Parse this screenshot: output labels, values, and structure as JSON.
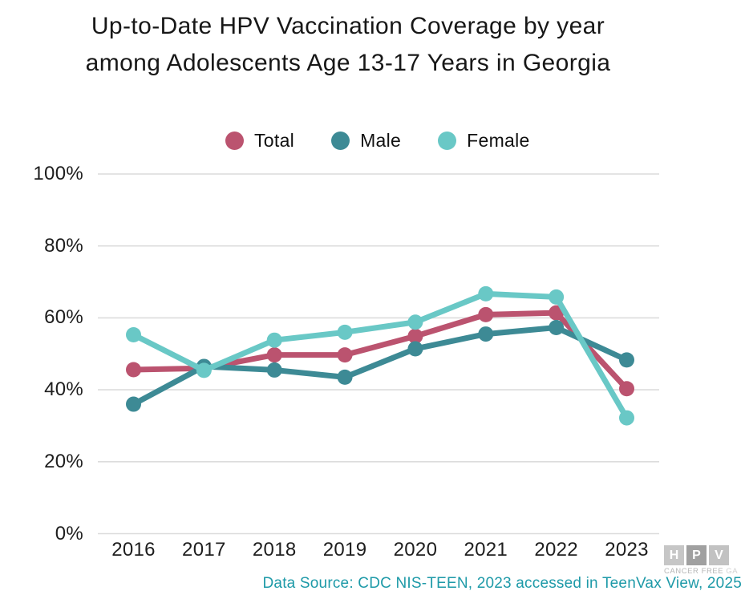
{
  "title": {
    "line1": "Up-to-Date HPV Vaccination Coverage by year",
    "line2": "among Adolescents Age 13-17 Years in Georgia"
  },
  "legend": [
    {
      "label": "Total",
      "color": "#bb536f"
    },
    {
      "label": "Male",
      "color": "#3d8a95"
    },
    {
      "label": "Female",
      "color": "#69c8c6"
    }
  ],
  "chart_data": {
    "type": "line",
    "title": "Up-to-Date HPV Vaccination Coverage by year among Adolescents Age 13-17 Years in Georgia",
    "x": [
      "2016",
      "2017",
      "2018",
      "2019",
      "2020",
      "2021",
      "2022",
      "2023"
    ],
    "series": [
      {
        "name": "Total",
        "color": "#bb536f",
        "values": [
          45.6,
          46.0,
          49.7,
          49.7,
          54.9,
          60.9,
          61.4,
          40.3
        ]
      },
      {
        "name": "Male",
        "color": "#3d8a95",
        "values": [
          36.0,
          46.5,
          45.5,
          43.5,
          51.4,
          55.5,
          57.3,
          48.3
        ]
      },
      {
        "name": "Female",
        "color": "#69c8c6",
        "values": [
          55.3,
          45.4,
          53.8,
          56.0,
          58.8,
          66.7,
          65.8,
          32.2
        ]
      }
    ],
    "yticks": [
      "0%",
      "20%",
      "40%",
      "60%",
      "80%",
      "100%"
    ],
    "ylim": [
      0,
      100
    ],
    "grid": true,
    "legend_position": "top",
    "xlabel": "",
    "ylabel": ""
  },
  "colors": {
    "grid": "#dcdcdc",
    "title_text": "#171717",
    "tick_text": "#1e1e1e"
  },
  "source": {
    "text": "Data Source: CDC NIS-TEEN, 2023 accessed in TeenVax View, 2025",
    "color": "#1e9aa8"
  },
  "logo": {
    "letters": [
      "H",
      "P",
      "V"
    ],
    "caption_main": "CANCER FREE",
    "caption_suffix": "GA"
  }
}
